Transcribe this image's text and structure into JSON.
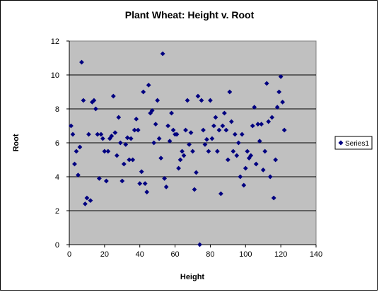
{
  "chart_data": {
    "type": "scatter",
    "title": "Plant Wheat: Height v. Root",
    "xlabel": "Height",
    "ylabel": "Root",
    "xlim": [
      0,
      140
    ],
    "ylim": [
      0,
      12
    ],
    "x_ticks": [
      "0",
      "20",
      "40",
      "60",
      "80",
      "100",
      "120",
      "140"
    ],
    "y_ticks": [
      "0",
      "2",
      "4",
      "6",
      "8",
      "10",
      "12"
    ],
    "grid": "horizontal",
    "legend_position": "right",
    "colors": {
      "plot_area": "#c0c0c0",
      "marker": "#000080",
      "gridline": "#000000"
    },
    "series": [
      {
        "name": "Series1",
        "marker": "diamond",
        "points": [
          [
            1,
            7.0
          ],
          [
            2,
            6.5
          ],
          [
            3,
            4.75
          ],
          [
            4,
            5.5
          ],
          [
            5,
            4.1
          ],
          [
            6,
            5.75
          ],
          [
            7,
            10.75
          ],
          [
            8,
            8.5
          ],
          [
            9,
            2.4
          ],
          [
            10,
            2.75
          ],
          [
            11,
            6.5
          ],
          [
            12,
            2.6
          ],
          [
            13,
            8.4
          ],
          [
            14,
            8.5
          ],
          [
            15,
            8.0
          ],
          [
            16,
            6.5
          ],
          [
            17,
            3.9
          ],
          [
            18,
            6.5
          ],
          [
            19,
            6.25
          ],
          [
            20,
            5.5
          ],
          [
            21,
            3.75
          ],
          [
            22,
            5.5
          ],
          [
            23,
            6.25
          ],
          [
            24,
            6.4
          ],
          [
            25,
            8.75
          ],
          [
            26,
            6.6
          ],
          [
            27,
            5.25
          ],
          [
            28,
            7.5
          ],
          [
            29,
            6.0
          ],
          [
            30,
            3.75
          ],
          [
            31,
            4.75
          ],
          [
            32,
            5.9
          ],
          [
            33,
            6.3
          ],
          [
            34,
            5.0
          ],
          [
            35,
            6.25
          ],
          [
            36,
            5.0
          ],
          [
            37,
            6.75
          ],
          [
            38,
            7.4
          ],
          [
            39,
            6.75
          ],
          [
            40,
            3.6
          ],
          [
            41,
            4.3
          ],
          [
            42,
            9.0
          ],
          [
            43,
            3.6
          ],
          [
            44,
            3.1
          ],
          [
            45,
            9.4
          ],
          [
            46,
            7.75
          ],
          [
            47,
            7.9
          ],
          [
            48,
            6.0
          ],
          [
            49,
            7.1
          ],
          [
            50,
            8.5
          ],
          [
            51,
            6.25
          ],
          [
            52,
            5.1
          ],
          [
            53,
            11.25
          ],
          [
            54,
            3.9
          ],
          [
            55,
            3.4
          ],
          [
            56,
            7.0
          ],
          [
            57,
            6.1
          ],
          [
            58,
            7.75
          ],
          [
            59,
            6.75
          ],
          [
            60,
            6.5
          ],
          [
            61,
            6.5
          ],
          [
            62,
            4.5
          ],
          [
            63,
            5.0
          ],
          [
            64,
            5.5
          ],
          [
            65,
            5.25
          ],
          [
            66,
            6.75
          ],
          [
            67,
            8.5
          ],
          [
            68,
            5.9
          ],
          [
            69,
            6.6
          ],
          [
            70,
            5.5
          ],
          [
            71,
            3.25
          ],
          [
            72,
            4.25
          ],
          [
            73,
            8.75
          ],
          [
            74,
            0.0
          ],
          [
            75,
            8.5
          ],
          [
            76,
            6.75
          ],
          [
            77,
            5.9
          ],
          [
            78,
            6.2
          ],
          [
            79,
            5.5
          ],
          [
            80,
            8.5
          ],
          [
            81,
            6.25
          ],
          [
            82,
            7.0
          ],
          [
            83,
            7.5
          ],
          [
            84,
            5.5
          ],
          [
            85,
            6.75
          ],
          [
            86,
            3.0
          ],
          [
            87,
            7.0
          ],
          [
            88,
            7.75
          ],
          [
            89,
            6.75
          ],
          [
            90,
            5.0
          ],
          [
            91,
            9.0
          ],
          [
            92,
            7.25
          ],
          [
            93,
            5.5
          ],
          [
            94,
            6.5
          ],
          [
            95,
            5.25
          ],
          [
            96,
            6.0
          ],
          [
            97,
            4.0
          ],
          [
            98,
            6.5
          ],
          [
            99,
            3.5
          ],
          [
            100,
            4.5
          ],
          [
            101,
            5.5
          ],
          [
            102,
            5.1
          ],
          [
            103,
            5.25
          ],
          [
            104,
            7.0
          ],
          [
            105,
            8.1
          ],
          [
            106,
            4.75
          ],
          [
            107,
            7.1
          ],
          [
            108,
            6.1
          ],
          [
            109,
            7.1
          ],
          [
            110,
            4.4
          ],
          [
            111,
            5.5
          ],
          [
            112,
            9.5
          ],
          [
            113,
            7.25
          ],
          [
            114,
            4.0
          ],
          [
            115,
            7.5
          ],
          [
            116,
            2.75
          ],
          [
            117,
            5.0
          ],
          [
            118,
            8.1
          ],
          [
            119,
            9.0
          ],
          [
            120,
            9.9
          ],
          [
            121,
            8.4
          ],
          [
            122,
            6.75
          ]
        ]
      }
    ]
  }
}
